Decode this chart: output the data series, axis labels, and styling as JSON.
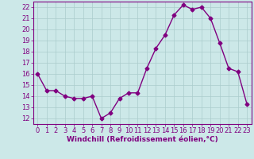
{
  "x": [
    0,
    1,
    2,
    3,
    4,
    5,
    6,
    7,
    8,
    9,
    10,
    11,
    12,
    13,
    14,
    15,
    16,
    17,
    18,
    19,
    20,
    21,
    22,
    23
  ],
  "y": [
    16.0,
    14.5,
    14.5,
    14.0,
    13.8,
    13.8,
    14.0,
    12.0,
    12.5,
    13.8,
    14.3,
    14.3,
    16.5,
    18.3,
    19.5,
    21.3,
    22.2,
    21.8,
    22.0,
    21.0,
    18.8,
    16.5,
    16.2,
    13.3
  ],
  "line_color": "#800080",
  "marker": "D",
  "markersize": 2.5,
  "linewidth": 1.0,
  "bg_color": "#cce8e8",
  "grid_color": "#aacccc",
  "xlabel": "Windchill (Refroidissement éolien,°C)",
  "xlim": [
    -0.5,
    23.5
  ],
  "ylim": [
    11.5,
    22.5
  ],
  "yticks": [
    12,
    13,
    14,
    15,
    16,
    17,
    18,
    19,
    20,
    21,
    22
  ],
  "xticks": [
    0,
    1,
    2,
    3,
    4,
    5,
    6,
    7,
    8,
    9,
    10,
    11,
    12,
    13,
    14,
    15,
    16,
    17,
    18,
    19,
    20,
    21,
    22,
    23
  ],
  "xlabel_fontsize": 6.5,
  "tick_fontsize": 6.0,
  "tick_color": "#800080",
  "label_color": "#800080",
  "axis_color": "#800080"
}
